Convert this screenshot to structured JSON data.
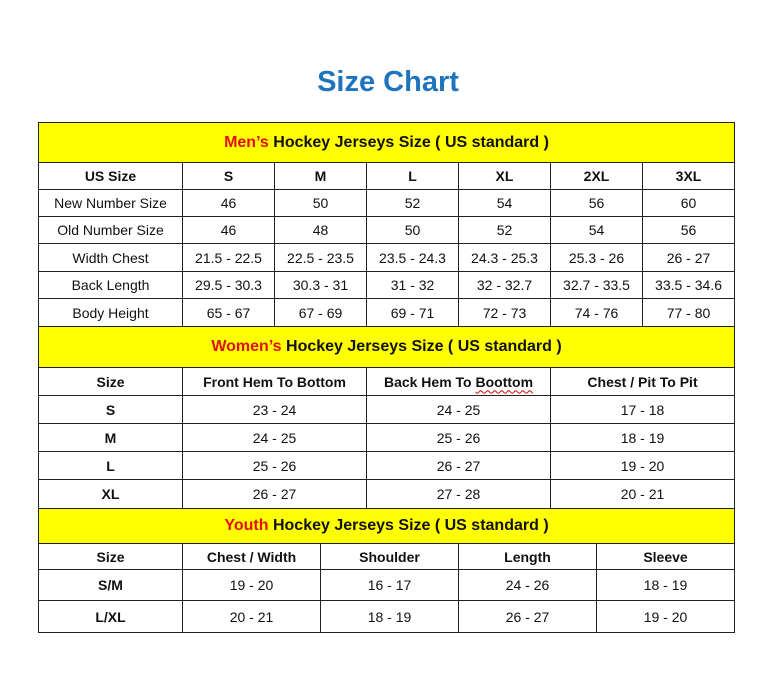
{
  "title": "Size Chart",
  "colors": {
    "title": "#1f74bf",
    "header_bg": "#ffff00",
    "header_accent": "#e01010"
  },
  "men": {
    "lead": "Men’s",
    "title": " Hockey Jerseys Size ( US standard )",
    "columns": [
      "US Size",
      "S",
      "M",
      "L",
      "XL",
      "2XL",
      "3XL"
    ],
    "rows": [
      [
        "New Number Size",
        "46",
        "50",
        "52",
        "54",
        "56",
        "60"
      ],
      [
        "Old Number Size",
        "46",
        "48",
        "50",
        "52",
        "54",
        "56"
      ],
      [
        "Width Chest",
        "21.5 - 22.5",
        "22.5 - 23.5",
        "23.5 - 24.3",
        "24.3 - 25.3",
        "25.3 - 26",
        "26 - 27"
      ],
      [
        "Back Length",
        "29.5 - 30.3",
        "30.3 - 31",
        "31 - 32",
        "32 - 32.7",
        "32.7 - 33.5",
        "33.5 - 34.6"
      ],
      [
        "Body Height",
        "65 - 67",
        "67 - 69",
        "69 - 71",
        "72 - 73",
        "74 - 76",
        "77 - 80"
      ]
    ]
  },
  "women": {
    "lead": "Women’s",
    "title": " Hockey Jerseys Size ( US standard )",
    "columns": [
      "Size",
      "Front Hem To Bottom",
      "Back Hem To ",
      "Chest / Pit To Pit"
    ],
    "misspelled": "Boottom",
    "rows": [
      [
        "S",
        "23 - 24",
        "24 - 25",
        "17 - 18"
      ],
      [
        "M",
        "24 - 25",
        "25 - 26",
        "18 - 19"
      ],
      [
        "L",
        "25 - 26",
        "26 - 27",
        "19 - 20"
      ],
      [
        "XL",
        "26 - 27",
        "27 - 28",
        "20 - 21"
      ]
    ]
  },
  "youth": {
    "lead": "Youth",
    "title": " Hockey Jerseys Size ( US standard )",
    "columns": [
      "Size",
      "Chest / Width",
      "Shoulder",
      "Length",
      "Sleeve"
    ],
    "rows": [
      [
        "S/M",
        "19 - 20",
        "16 - 17",
        "24 - 26",
        "18 - 19"
      ],
      [
        "L/XL",
        "20 - 21",
        "18 - 19",
        "26 - 27",
        "19 - 20"
      ]
    ]
  }
}
